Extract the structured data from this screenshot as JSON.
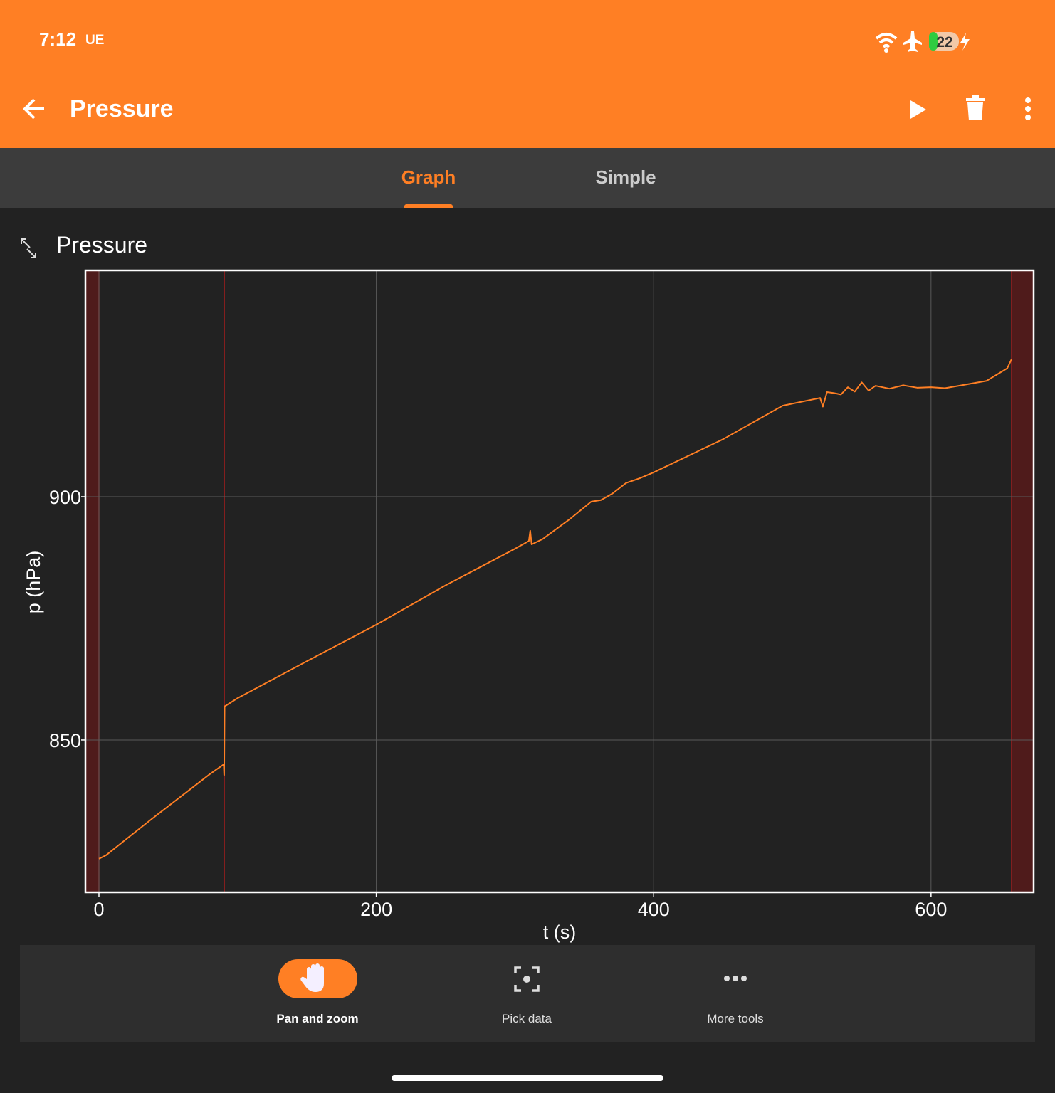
{
  "status_bar": {
    "time": "7:12",
    "carrier": "UE",
    "battery": "22"
  },
  "toolbar": {
    "title": "Pressure"
  },
  "tabs": [
    "Graph",
    "Simple"
  ],
  "chart_data": {
    "type": "line",
    "title": "Pressure",
    "x_label": "t (s)",
    "y_label": "p (hPa)",
    "x": [
      0,
      5,
      20,
      40,
      60,
      80,
      90,
      90.3,
      90.6,
      100,
      150,
      200,
      250,
      300,
      310,
      311,
      312,
      320,
      340,
      355,
      362,
      370,
      380,
      390,
      400,
      450,
      493,
      520,
      522,
      525,
      530,
      535,
      540,
      545,
      550,
      555,
      560,
      570,
      580,
      590,
      600,
      610,
      620,
      640,
      655,
      658
    ],
    "values": [
      825.6,
      826.3,
      829.7,
      834.2,
      838.6,
      843.0,
      845.0,
      842.8,
      856.9,
      858.6,
      866.2,
      873.7,
      881.8,
      889.3,
      890.9,
      893.0,
      890.2,
      891.3,
      895.5,
      899.0,
      899.3,
      900.6,
      902.8,
      903.8,
      905.0,
      911.8,
      918.7,
      920.3,
      918.5,
      921.5,
      921.3,
      921.0,
      922.5,
      921.6,
      923.5,
      921.8,
      922.8,
      922.2,
      922.9,
      922.4,
      922.5,
      922.3,
      922.8,
      923.8,
      926.4,
      928.2
    ],
    "color": "#ff7f24",
    "xlim": [
      -9.75,
      674
    ],
    "ylim": [
      818.7,
      946.5
    ],
    "xticks": [
      0,
      200,
      400,
      600
    ],
    "yticks": [
      850,
      900
    ],
    "grid": true
  },
  "tools": [
    "Pan and zoom",
    "Pick data",
    "More tools"
  ]
}
